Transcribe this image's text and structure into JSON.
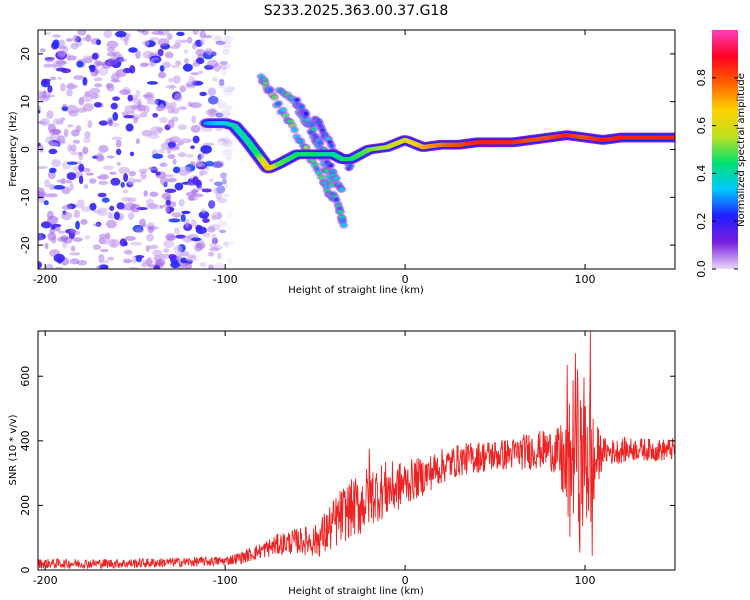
{
  "title": "S233.2025.363.00.37.G18",
  "chart_data": [
    {
      "type": "heatmap",
      "title": "S233.2025.363.00.37.G18",
      "xlabel": "Height of straight line (km)",
      "ylabel": "Frequency (Hz)",
      "xlim": [
        -204,
        150
      ],
      "ylim": [
        -25,
        25
      ],
      "xticks": [
        -200,
        -100,
        0,
        100
      ],
      "yticks": [
        -20,
        -10,
        0,
        10,
        20
      ],
      "colorbar": {
        "label": "Normalized spectral amplitude",
        "range": [
          0,
          1
        ],
        "ticks": [
          0.0,
          0.2,
          0.4,
          0.6,
          0.8
        ],
        "tick_labels": [
          "0.0",
          "0.2",
          "0.4",
          "0.6",
          "0.8"
        ],
        "colors": [
          "#e8d8f8",
          "#7a1fe0",
          "#2020ff",
          "#00c8ff",
          "#00e070",
          "#c0e020",
          "#ffd000",
          "#ff6000",
          "#ff0020",
          "#ff40c0"
        ]
      },
      "features": [
        {
          "name": "noise region",
          "x_range": [
            -204,
            -95
          ],
          "y_range": [
            -25,
            25
          ],
          "amplitude": 0.1
        },
        {
          "name": "signal trace",
          "x": [
            -110,
            -100,
            -95,
            -88,
            -82,
            -76,
            -70,
            -60,
            -50,
            -40,
            -35,
            -30,
            -20,
            -10,
            0,
            10,
            20,
            30,
            40,
            50,
            60,
            70,
            80,
            90,
            100,
            110,
            120,
            130,
            140,
            150
          ],
          "y": [
            5.5,
            5.5,
            5,
            2,
            -1,
            -4,
            -3,
            -1,
            -1,
            -1,
            -2,
            -2,
            0,
            0.5,
            2,
            0.5,
            1,
            1,
            1.5,
            1.5,
            1.5,
            2,
            2.5,
            3,
            2.5,
            2,
            2.5,
            2.5,
            2.5,
            2.5
          ],
          "amplitude": [
            0.3,
            0.35,
            0.4,
            0.4,
            0.45,
            0.7,
            0.5,
            0.45,
            0.45,
            0.4,
            0.45,
            0.45,
            0.5,
            0.55,
            0.6,
            0.7,
            0.75,
            0.8,
            0.85,
            0.85,
            0.85,
            0.8,
            0.8,
            0.85,
            0.8,
            0.85,
            0.85,
            0.85,
            0.85,
            0.85
          ]
        },
        {
          "name": "streak 1",
          "x": [
            -80,
            -75,
            -65,
            -55,
            -45,
            -40
          ],
          "y": [
            15,
            12,
            6,
            0,
            -7,
            -11
          ],
          "amplitude": 0.45
        },
        {
          "name": "streak 2",
          "x": [
            -70,
            -60,
            -52,
            -44,
            -37,
            -34
          ],
          "y": [
            13,
            9,
            4,
            -4,
            -12,
            -16
          ],
          "amplitude": 0.4
        },
        {
          "name": "streak 3",
          "x": [
            -60,
            -55,
            -48,
            -40,
            -35
          ],
          "y": [
            10,
            7,
            2,
            -5,
            -9
          ],
          "amplitude": 0.35
        },
        {
          "name": "streak 4",
          "x": [
            -50,
            -45,
            -38,
            -30
          ],
          "y": [
            7,
            3,
            -1,
            -4
          ],
          "amplitude": 0.3
        }
      ]
    },
    {
      "type": "line",
      "xlabel": "Height of straight line (km)",
      "ylabel": "SNR (10 * v/v)",
      "xlim": [
        -204,
        150
      ],
      "ylim": [
        0,
        740
      ],
      "xticks": [
        -200,
        -100,
        0,
        100
      ],
      "yticks": [
        0,
        200,
        400,
        600
      ],
      "series": [
        {
          "name": "SNR",
          "color": "#ee2222",
          "x": [
            -204,
            -180,
            -160,
            -140,
            -120,
            -100,
            -90,
            -80,
            -70,
            -60,
            -50,
            -45,
            -40,
            -35,
            -30,
            -25,
            -20,
            -15,
            -10,
            -5,
            0,
            10,
            20,
            30,
            40,
            50,
            60,
            70,
            80,
            85,
            88,
            90,
            92,
            95,
            97,
            100,
            102,
            104,
            106,
            110,
            115,
            120,
            130,
            140,
            150
          ],
          "mean": [
            20,
            20,
            20,
            22,
            25,
            28,
            40,
            60,
            80,
            90,
            90,
            110,
            140,
            170,
            190,
            200,
            230,
            240,
            250,
            255,
            270,
            290,
            320,
            340,
            350,
            355,
            360,
            370,
            375,
            360,
            330,
            250,
            320,
            450,
            300,
            370,
            380,
            260,
            340,
            370,
            365,
            370,
            375,
            370,
            375
          ],
          "amp": [
            15,
            15,
            15,
            15,
            15,
            15,
            20,
            25,
            35,
            40,
            50,
            70,
            80,
            90,
            90,
            100,
            100,
            90,
            90,
            80,
            70,
            60,
            55,
            50,
            50,
            50,
            50,
            60,
            60,
            80,
            140,
            200,
            230,
            250,
            250,
            260,
            300,
            250,
            120,
            40,
            40,
            40,
            35,
            35,
            35
          ],
          "peaks": [
            {
              "x": -20,
              "y": 375
            },
            {
              "x": 90,
              "y": 635
            },
            {
              "x": 103,
              "y": 740
            }
          ]
        }
      ]
    }
  ]
}
